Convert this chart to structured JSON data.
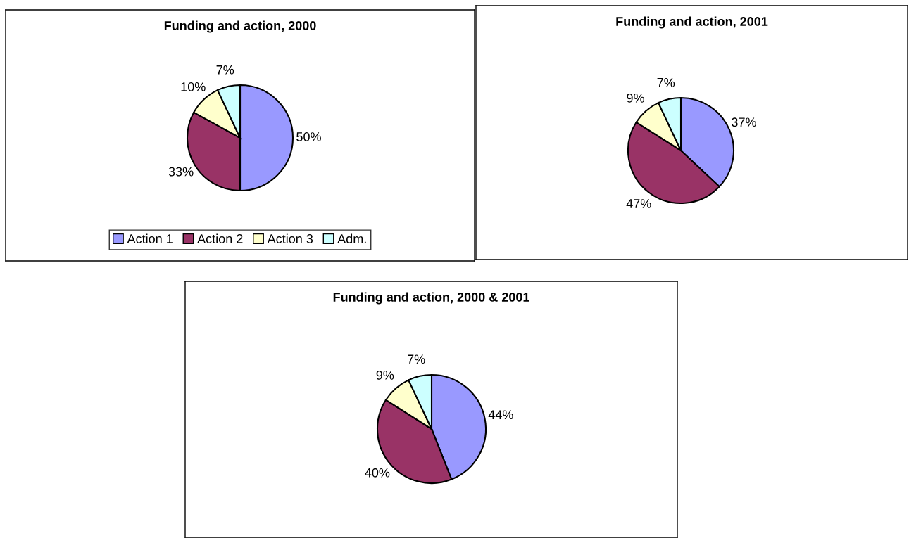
{
  "chart_data": [
    {
      "type": "pie",
      "title": "Funding and action, 2000",
      "categories": [
        "Action 1",
        "Action 2",
        "Action 3",
        "Adm."
      ],
      "values": [
        50,
        33,
        10,
        7
      ],
      "value_labels": [
        "50%",
        "33%",
        "10%",
        "7%"
      ],
      "colors": [
        "#9999ff",
        "#993366",
        "#ffffcc",
        "#ccffff"
      ],
      "legend": "bottom"
    },
    {
      "type": "pie",
      "title": "Funding and action, 2001",
      "categories": [
        null,
        null,
        null,
        null
      ],
      "values": [
        37,
        47,
        9,
        7
      ],
      "value_labels": [
        "37%",
        "47%",
        "9%",
        "7%"
      ],
      "colors": [
        "#9999ff",
        "#993366",
        "#ffffcc",
        "#ccffff"
      ]
    },
    {
      "type": "pie",
      "title": "Funding and action, 2000 & 2001",
      "categories": [
        null,
        null,
        null,
        null
      ],
      "values": [
        44,
        40,
        9,
        7
      ],
      "value_labels": [
        "44%",
        "40%",
        "9%",
        "7%"
      ],
      "colors": [
        "#9999ff",
        "#993366",
        "#ffffcc",
        "#ccffff"
      ]
    }
  ]
}
